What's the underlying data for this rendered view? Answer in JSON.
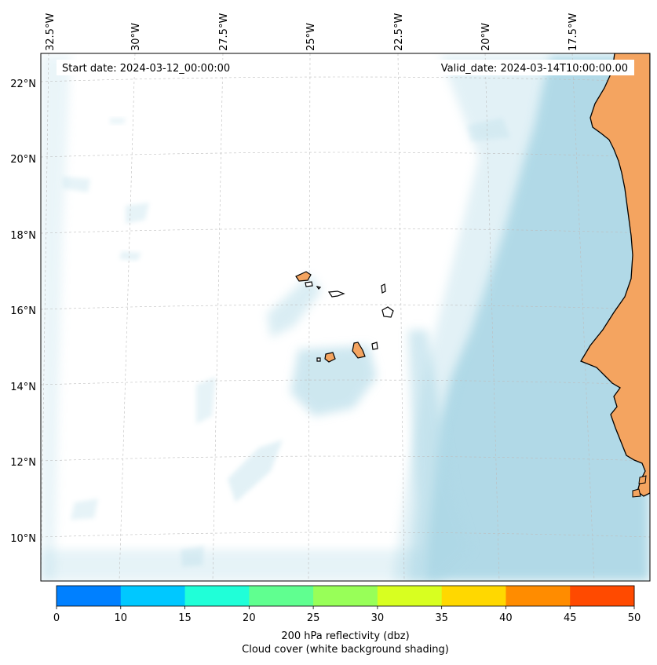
{
  "map": {
    "start_date_label": "Start date: 2024-03-12_00:00:00",
    "valid_date_label": "Valid_date: 2024-03-14T10:00:00.00",
    "lon_labels": [
      "32.5°W",
      "30°W",
      "27.5°W",
      "25°W",
      "22.5°W",
      "20°W",
      "17.5°W"
    ],
    "lat_labels": [
      "22°N",
      "20°N",
      "18°N",
      "16°N",
      "14°N",
      "12°N",
      "10°N"
    ],
    "cloud_color": "#add8e6",
    "land_color": "#f4a460"
  },
  "colorbar": {
    "ticks": [
      "0",
      "10",
      "15",
      "20",
      "25",
      "30",
      "35",
      "40",
      "45",
      "50"
    ],
    "colors": [
      "#0080ff",
      "#00c8ff",
      "#20ffd8",
      "#60ff90",
      "#98ff58",
      "#d8ff20",
      "#ffd800",
      "#ff8c00",
      "#ff4a00"
    ],
    "label": "200 hPa reflectivity (dbz)",
    "sublabel": "Cloud cover (white background shading)"
  }
}
